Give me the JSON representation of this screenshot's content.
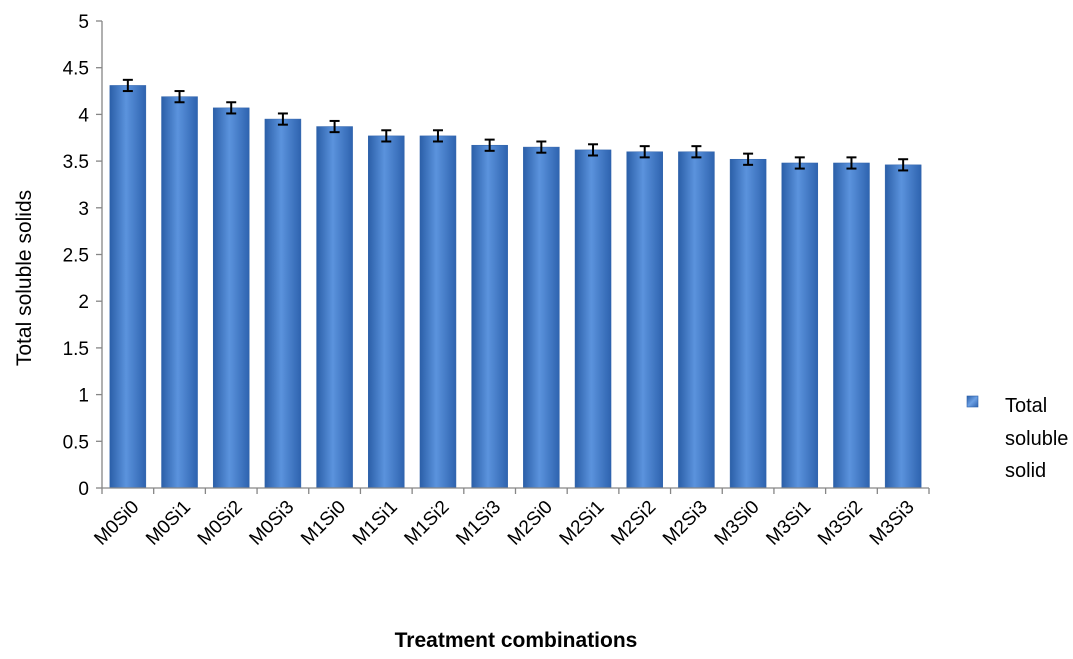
{
  "chart_data": {
    "type": "bar",
    "title": "",
    "xlabel": "Treatment combinations",
    "ylabel": "Total soluble solids",
    "ylim": [
      0,
      5
    ],
    "y_ticks": [
      "0",
      "0.5",
      "1",
      "1.5",
      "2",
      "2.5",
      "3",
      "3.5",
      "4",
      "4.5",
      "5"
    ],
    "grid": false,
    "legend_position": "right",
    "categories": [
      "M0Si0",
      "M0Si1",
      "M0Si2",
      "M0Si3",
      "M1Si0",
      "M1Si1",
      "M1Si2",
      "M1Si3",
      "M2Si0",
      "M2Si1",
      "M2Si2",
      "M2Si3",
      "M3Si0",
      "M3Si1",
      "M3Si2",
      "M3Si3"
    ],
    "series": [
      {
        "name": "Total soluble solid",
        "legend_lines": [
          "Total",
          "soluble",
          "solid"
        ],
        "color": "#3E73C2",
        "values": [
          4.31,
          4.19,
          4.07,
          3.95,
          3.87,
          3.77,
          3.77,
          3.67,
          3.65,
          3.62,
          3.6,
          3.6,
          3.52,
          3.48,
          3.48,
          3.46
        ],
        "error": [
          0.06,
          0.06,
          0.06,
          0.06,
          0.06,
          0.06,
          0.06,
          0.06,
          0.06,
          0.06,
          0.06,
          0.06,
          0.06,
          0.06,
          0.06,
          0.06
        ]
      }
    ]
  }
}
